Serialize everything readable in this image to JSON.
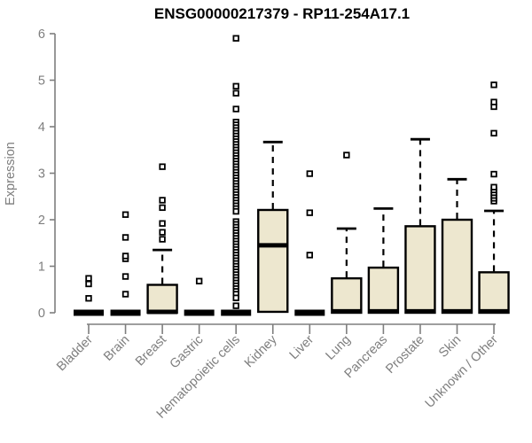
{
  "window": {
    "background": "#ffffff"
  },
  "chart_data": {
    "type": "boxplot",
    "title": "ENSG00000217379 - RP11-254A17.1",
    "ylabel": "Expression",
    "xlabel": "",
    "ylim": [
      0,
      6
    ],
    "yticks": [
      0,
      1,
      2,
      3,
      4,
      5,
      6
    ],
    "grid": false,
    "legend": "none",
    "axis_color": "#7e7e7e",
    "tick_label_color": "#7e7e7e",
    "title_color": "#000000",
    "box_fill": "#ede7cf",
    "box_stroke": "#000000",
    "outlier_fill": "#ffffff",
    "outlier_stroke": "#000000",
    "categories": [
      "Bladder",
      "Brain",
      "Breast",
      "Gastric",
      "Hematopoietic cells",
      "Kidney",
      "Liver",
      "Lung",
      "Pancreas",
      "Prostate",
      "Skin",
      "Unknown / Other"
    ],
    "boxes": [
      {
        "category": "Bladder",
        "q1": 0,
        "median": 0.02,
        "q3": 0.05,
        "whisker_low": 0,
        "whisker_high": 0.05,
        "collapsed": true,
        "outliers": [
          0.31,
          0.62,
          0.74
        ]
      },
      {
        "category": "Brain",
        "q1": 0,
        "median": 0.02,
        "q3": 0.05,
        "whisker_low": 0,
        "whisker_high": 0.05,
        "collapsed": true,
        "outliers": [
          0.4,
          0.78,
          1.16,
          1.22,
          1.62,
          2.11
        ]
      },
      {
        "category": "Breast",
        "q1": 0,
        "median": 0.02,
        "q3": 0.6,
        "whisker_low": 0,
        "whisker_high": 1.35,
        "collapsed": false,
        "outliers": [
          1.58,
          1.73,
          1.92,
          2.26,
          2.42,
          3.14
        ]
      },
      {
        "category": "Gastric",
        "q1": 0,
        "median": 0.02,
        "q3": 0.05,
        "whisker_low": 0,
        "whisker_high": 0.05,
        "collapsed": true,
        "outliers": [
          0.68
        ]
      },
      {
        "category": "Hematopoietic cells",
        "q1": 0,
        "median": 0.02,
        "q3": 0.05,
        "whisker_low": 0,
        "whisker_high": 0.05,
        "collapsed": true,
        "outliers": [
          5.9,
          4.87,
          4.72,
          4.38,
          4.1,
          4.04,
          3.98,
          3.92,
          3.86,
          3.8,
          3.74,
          3.68,
          3.62,
          3.56,
          3.5,
          3.44,
          3.38,
          3.32,
          3.26,
          3.2,
          3.14,
          3.08,
          3.02,
          2.96,
          2.9,
          2.84,
          2.78,
          2.72,
          2.66,
          2.6,
          2.54,
          2.48,
          2.42,
          2.36,
          2.3,
          2.24,
          2.18,
          1.96,
          1.9,
          1.84,
          1.78,
          1.72,
          1.66,
          1.6,
          1.54,
          1.48,
          1.42,
          1.36,
          1.3,
          1.24,
          1.18,
          1.12,
          1.06,
          1.0,
          0.94,
          0.88,
          0.82,
          0.76,
          0.7,
          0.64,
          0.58,
          0.52,
          0.46,
          0.4,
          0.32,
          0.15
        ]
      },
      {
        "category": "Kidney",
        "q1": 0.02,
        "median": 1.45,
        "q3": 2.21,
        "whisker_low": 0,
        "whisker_high": 3.67,
        "collapsed": false,
        "outliers": []
      },
      {
        "category": "Liver",
        "q1": 0,
        "median": 0.02,
        "q3": 0.05,
        "whisker_low": 0,
        "whisker_high": 0.05,
        "collapsed": true,
        "outliers": [
          1.24,
          2.15,
          2.99
        ]
      },
      {
        "category": "Lung",
        "q1": 0,
        "median": 0.03,
        "q3": 0.74,
        "whisker_low": 0,
        "whisker_high": 1.81,
        "collapsed": false,
        "outliers": [
          3.39
        ]
      },
      {
        "category": "Pancreas",
        "q1": 0,
        "median": 0.03,
        "q3": 0.97,
        "whisker_low": 0,
        "whisker_high": 2.24,
        "collapsed": false,
        "outliers": []
      },
      {
        "category": "Prostate",
        "q1": 0,
        "median": 0.03,
        "q3": 1.86,
        "whisker_low": 0,
        "whisker_high": 3.73,
        "collapsed": false,
        "outliers": []
      },
      {
        "category": "Skin",
        "q1": 0,
        "median": 0.03,
        "q3": 2.0,
        "whisker_low": 0,
        "whisker_high": 2.87,
        "collapsed": false,
        "outliers": []
      },
      {
        "category": "Unknown / Other",
        "q1": 0,
        "median": 0.03,
        "q3": 0.87,
        "whisker_low": 0,
        "whisker_high": 2.19,
        "collapsed": false,
        "outliers": [
          2.4,
          2.46,
          2.52,
          2.58,
          2.64,
          2.7,
          2.98,
          3.86,
          4.43,
          4.53,
          4.9
        ]
      }
    ]
  }
}
